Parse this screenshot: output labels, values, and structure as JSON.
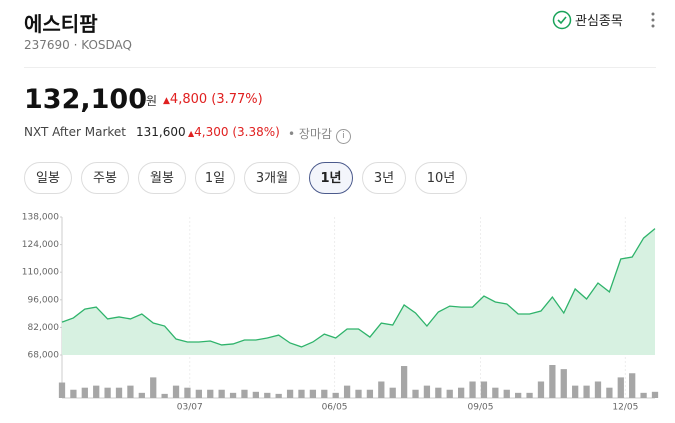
{
  "header": {
    "title": "에스티팜",
    "code": "237690 · KOSDAQ",
    "watch": "관심종목"
  },
  "price": {
    "value": "132,100",
    "unit": "원",
    "change": "4,800 (3.77%)"
  },
  "after": {
    "label": "NXT After Market",
    "price": "131,600",
    "change": "4,300 (3.38%)",
    "status": "장마감"
  },
  "tabs": [
    "일봉",
    "주봉",
    "월봉",
    "1일",
    "3개월",
    "1년",
    "3년",
    "10년"
  ],
  "selected_tab": 5,
  "chart_data": {
    "type": "area",
    "x": [
      0,
      1,
      2,
      3,
      4,
      5,
      6,
      7,
      8,
      9,
      10,
      11,
      12,
      13,
      14,
      15,
      16,
      17,
      18,
      19,
      20,
      21,
      22,
      23,
      24,
      25,
      26,
      27,
      28,
      29,
      30,
      31,
      32,
      33,
      34,
      35,
      36,
      37,
      38,
      39,
      40,
      41,
      42,
      43,
      44,
      45,
      46,
      47,
      48,
      49,
      50,
      51,
      52
    ],
    "xlim": [
      0,
      52
    ],
    "xticks": [
      {
        "value": 11.2,
        "label": "03/07"
      },
      {
        "value": 23.9,
        "label": "06/05"
      },
      {
        "value": 36.7,
        "label": "09/05"
      },
      {
        "value": 49.4,
        "label": "12/05"
      }
    ],
    "series": [
      {
        "color": "#2fb36b",
        "fill": "#d7f1e1",
        "values": [
          84700,
          86800,
          91300,
          92300,
          86300,
          87300,
          86300,
          88800,
          84200,
          82700,
          76100,
          74600,
          74600,
          75100,
          73100,
          73600,
          75600,
          75600,
          76600,
          78100,
          74100,
          72100,
          74600,
          78600,
          76600,
          81200,
          81200,
          77100,
          84200,
          83200,
          93400,
          89300,
          82700,
          89800,
          92800,
          92300,
          92300,
          97900,
          94900,
          93900,
          88800,
          88800,
          90300,
          97400,
          89300,
          101500,
          96400,
          104500,
          100000,
          116700,
          117700,
          127300,
          132100
        ]
      }
    ],
    "volume": [
      15,
      8,
      10,
      12,
      10,
      10,
      12,
      5,
      20,
      4,
      12,
      10,
      8,
      8,
      8,
      5,
      8,
      6,
      5,
      4,
      8,
      8,
      8,
      8,
      5,
      12,
      8,
      8,
      16,
      10,
      31,
      8,
      12,
      10,
      8,
      10,
      16,
      16,
      10,
      8,
      5,
      5,
      16,
      32,
      28,
      12,
      12,
      16,
      10,
      20,
      24,
      5,
      6
    ],
    "volume_color": "#a6a6a6",
    "ylim": [
      68000,
      138000
    ],
    "yticks": [
      {
        "value": 68000,
        "label": "68,000"
      },
      {
        "value": 82000,
        "label": "82,000"
      },
      {
        "value": 96000,
        "label": "96,000"
      },
      {
        "value": 110000,
        "label": "110,000"
      },
      {
        "value": 124000,
        "label": "124,000"
      },
      {
        "value": 138000,
        "label": "138,000"
      }
    ]
  }
}
